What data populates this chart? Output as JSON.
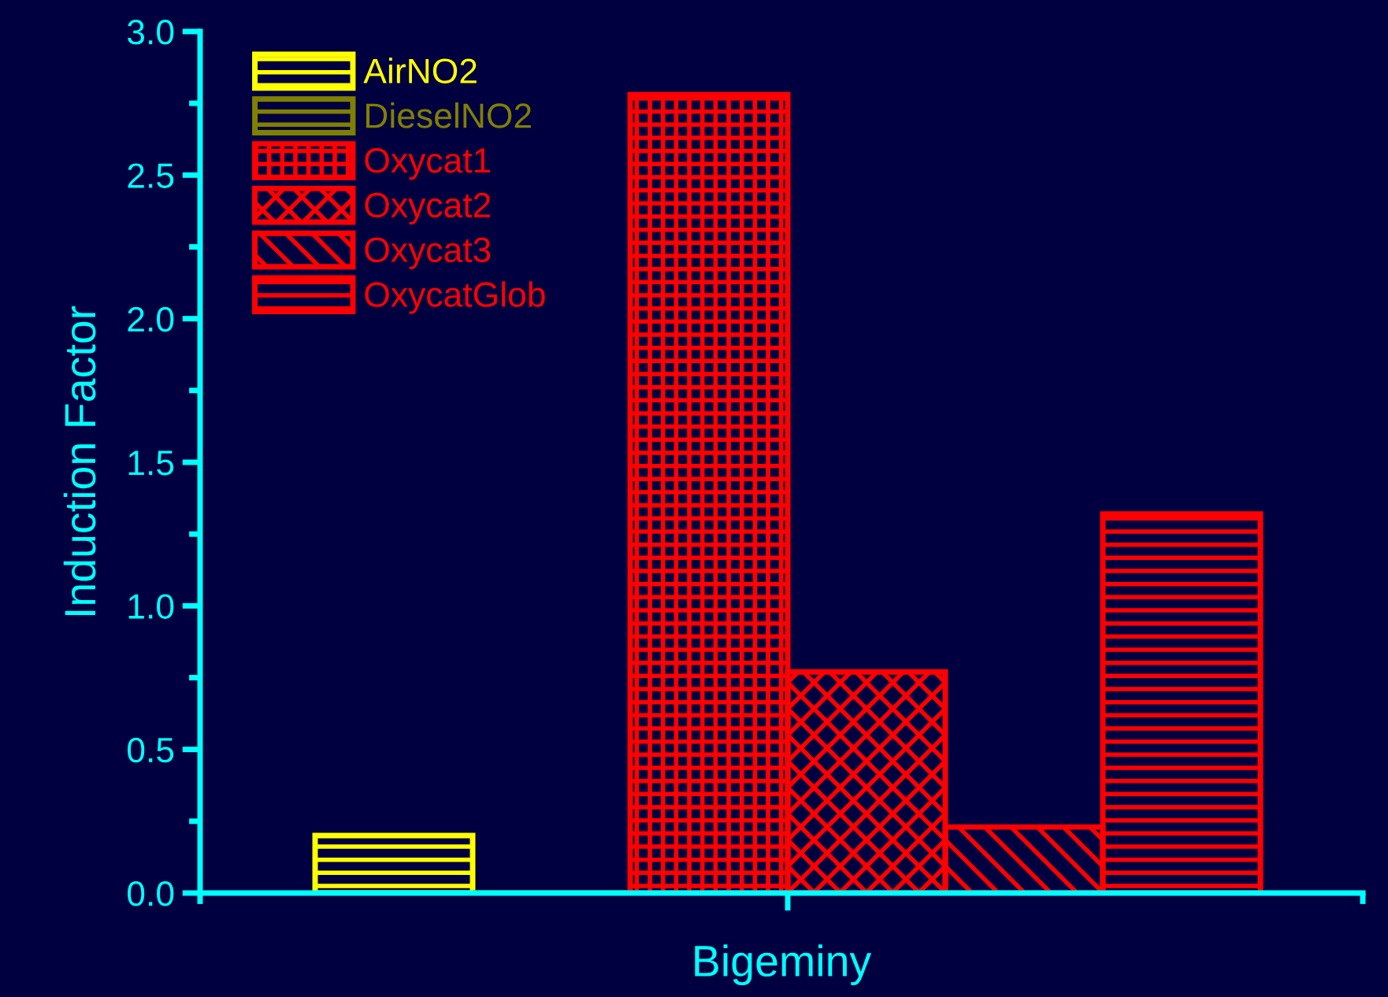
{
  "chart_data": {
    "type": "bar",
    "xlabel": "Bigeminy",
    "ylabel": "Induction Factor",
    "categories": [
      null
    ],
    "series": [
      {
        "name": "AirNO2",
        "color": "#ffff00",
        "values": [
          0.2
        ]
      },
      {
        "name": "DieselNO2",
        "color": "#808000",
        "values": [
          null
        ]
      },
      {
        "name": "Oxycat1",
        "color": "#ff0000",
        "values": [
          2.78
        ]
      },
      {
        "name": "Oxycat2",
        "color": "#ff0000",
        "values": [
          0.77
        ]
      },
      {
        "name": "Oxycat3",
        "color": "#ff0000",
        "values": [
          0.23
        ]
      },
      {
        "name": "OxycatGlob",
        "color": "#ff0000",
        "values": [
          1.32
        ]
      }
    ],
    "ylim": [
      0,
      3.0
    ],
    "yticks": [
      {
        "value": 0,
        "label": "0.0"
      },
      {
        "value": 0.5,
        "label": "0.5"
      },
      {
        "value": 1.0,
        "label": "1.0"
      },
      {
        "value": 1.5,
        "label": "1.5"
      },
      {
        "value": 2.0,
        "label": "2.0"
      },
      {
        "value": 2.5,
        "label": "2.5"
      },
      {
        "value": 3.0,
        "label": "3.0"
      }
    ],
    "grid": false,
    "legend": "top left"
  }
}
